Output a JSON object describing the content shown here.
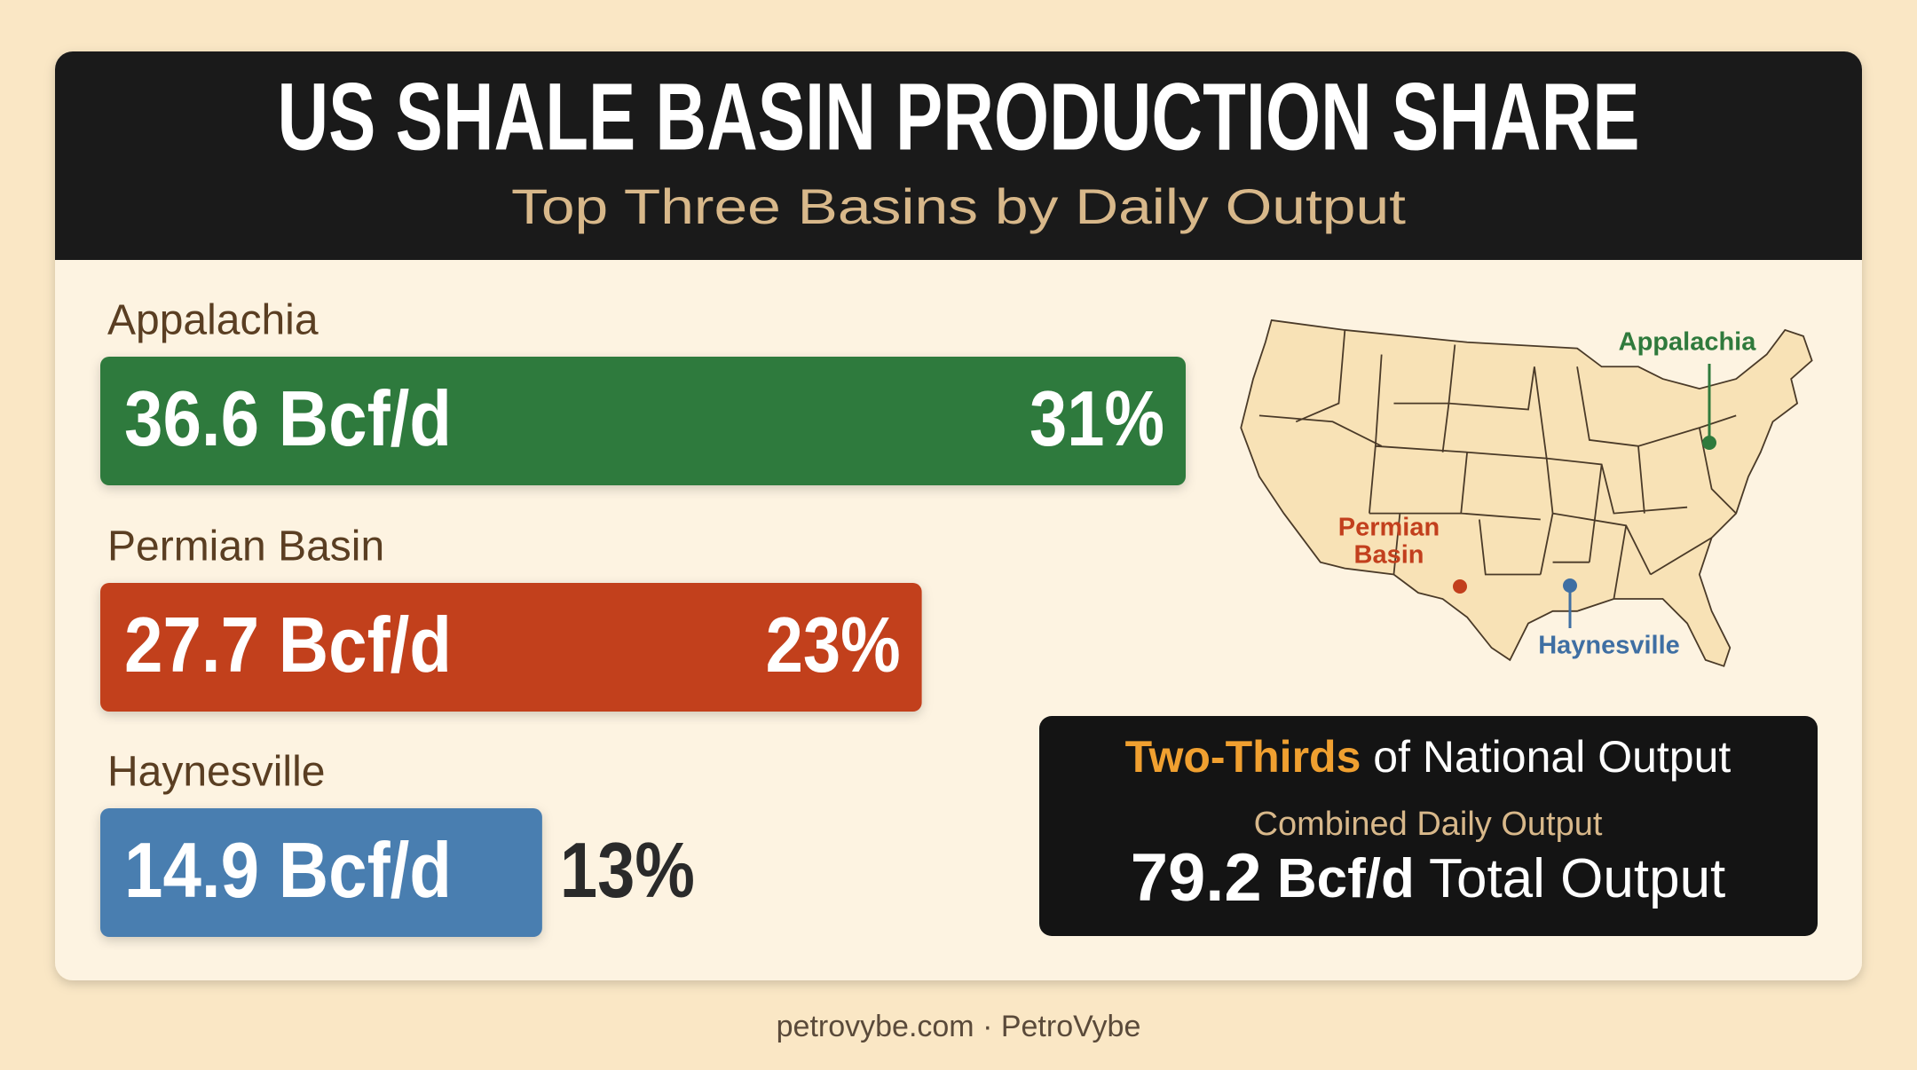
{
  "chart_data": {
    "type": "bar",
    "orientation": "horizontal",
    "title": "US SHALE BASIN PRODUCTION SHARE",
    "subtitle": "Top Three Basins by Daily Output",
    "categories": [
      "Appalachia",
      "Permian Basin",
      "Haynesville"
    ],
    "values": [
      36.6,
      27.7,
      14.9
    ],
    "value_labels": [
      "36.6 Bcf/d",
      "27.7 Bcf/d",
      "14.9 Bcf/d"
    ],
    "shares": [
      31,
      23,
      13
    ],
    "share_labels": [
      "31%",
      "23%",
      "13%"
    ],
    "colors": [
      "#2f7a3c",
      "#c23f1d",
      "#4a7eb0"
    ]
  },
  "map": {
    "labels": [
      {
        "text": "Appalachia",
        "color": "#2f7a3c"
      },
      {
        "text": "Permian",
        "text2": "Basin",
        "color": "#c23f1d"
      },
      {
        "text": "Haynesville",
        "color": "#3f6fa3"
      }
    ]
  },
  "callout": {
    "highlight": "Two-Thirds",
    "headline": "of National Output",
    "caption": "Combined Daily Output",
    "total": "79.2",
    "unit": "Bcf/d",
    "total_label": "Total Output"
  },
  "footer": "petrovybe.com · PetroVybe"
}
